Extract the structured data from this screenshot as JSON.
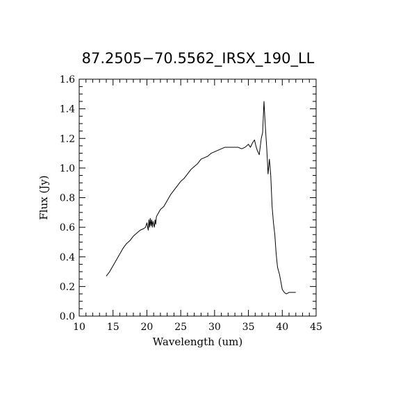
{
  "chart_data": {
    "type": "line",
    "title": "87.2505−70.5562_IRSX_190_LL",
    "xlabel": "Wavelength (um)",
    "ylabel": "Flux (Jy)",
    "xlim": [
      10,
      45
    ],
    "ylim": [
      0.0,
      1.6
    ],
    "x_ticks": [
      10,
      15,
      20,
      25,
      30,
      35,
      40,
      45
    ],
    "y_ticks": [
      0.0,
      0.2,
      0.4,
      0.6,
      0.8,
      1.0,
      1.2,
      1.4,
      1.6
    ],
    "x_tick_labels": [
      "10",
      "15",
      "20",
      "25",
      "30",
      "35",
      "40",
      "45"
    ],
    "y_tick_labels": [
      "0.0",
      "0.2",
      "0.4",
      "0.6",
      "0.8",
      "1.0",
      "1.2",
      "1.4",
      "1.6"
    ],
    "grid": false,
    "series": [
      {
        "line_color": "#000000",
        "x": [
          14.0,
          14.5,
          15.0,
          15.5,
          16.0,
          16.5,
          17.0,
          17.5,
          18.0,
          18.5,
          19.0,
          19.5,
          19.8,
          20.0,
          20.2,
          20.3,
          20.4,
          20.5,
          20.6,
          20.7,
          20.8,
          20.9,
          21.0,
          21.1,
          21.2,
          21.3,
          21.4,
          21.5,
          22.0,
          22.5,
          23.0,
          23.5,
          24.0,
          24.5,
          25.0,
          25.5,
          26.0,
          26.5,
          27.0,
          27.5,
          28.0,
          28.5,
          29.0,
          29.5,
          30.0,
          30.5,
          31.0,
          31.5,
          32.0,
          32.5,
          33.0,
          33.5,
          34.0,
          34.5,
          35.0,
          35.3,
          35.6,
          35.9,
          36.1,
          36.3,
          36.6,
          36.9,
          37.1,
          37.3,
          37.5,
          37.7,
          37.9,
          38.1,
          38.3,
          38.5,
          38.7,
          38.9,
          39.1,
          39.3,
          39.6,
          40.0,
          40.3,
          40.6,
          41.0,
          41.5,
          42.0
        ],
        "y": [
          0.27,
          0.3,
          0.34,
          0.38,
          0.42,
          0.46,
          0.49,
          0.51,
          0.54,
          0.56,
          0.58,
          0.59,
          0.6,
          0.63,
          0.58,
          0.65,
          0.6,
          0.66,
          0.61,
          0.65,
          0.6,
          0.64,
          0.62,
          0.6,
          0.65,
          0.62,
          0.67,
          0.68,
          0.72,
          0.74,
          0.78,
          0.82,
          0.85,
          0.88,
          0.91,
          0.93,
          0.96,
          0.99,
          1.01,
          1.03,
          1.06,
          1.07,
          1.08,
          1.1,
          1.11,
          1.12,
          1.13,
          1.14,
          1.14,
          1.14,
          1.14,
          1.14,
          1.13,
          1.14,
          1.16,
          1.14,
          1.17,
          1.19,
          1.15,
          1.12,
          1.09,
          1.2,
          1.24,
          1.45,
          1.28,
          1.14,
          0.96,
          1.06,
          0.95,
          0.74,
          0.63,
          0.55,
          0.42,
          0.33,
          0.28,
          0.18,
          0.16,
          0.15,
          0.16,
          0.16,
          0.16
        ]
      }
    ]
  }
}
